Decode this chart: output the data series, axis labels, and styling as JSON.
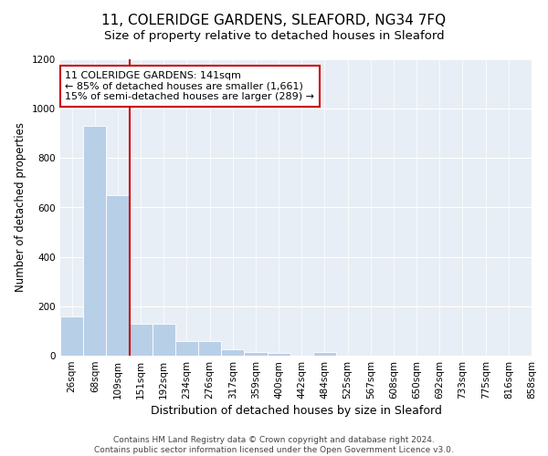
{
  "title": "11, COLERIDGE GARDENS, SLEAFORD, NG34 7FQ",
  "subtitle": "Size of property relative to detached houses in Sleaford",
  "xlabel": "Distribution of detached houses by size in Sleaford",
  "ylabel": "Number of detached properties",
  "bar_values": [
    160,
    930,
    650,
    130,
    130,
    60,
    60,
    25,
    15,
    10,
    0,
    15,
    0,
    0,
    0,
    0,
    0,
    0,
    0,
    0
  ],
  "bar_labels": [
    "26sqm",
    "68sqm",
    "109sqm",
    "151sqm",
    "192sqm",
    "234sqm",
    "276sqm",
    "317sqm",
    "359sqm",
    "400sqm",
    "442sqm",
    "484sqm",
    "525sqm",
    "567sqm",
    "608sqm",
    "650sqm",
    "692sqm",
    "733sqm",
    "775sqm",
    "816sqm",
    "858sqm"
  ],
  "bar_color": "#b8cfe8",
  "vline_x": 2.5,
  "vline_color": "#cc0000",
  "annotation_text": "11 COLERIDGE GARDENS: 141sqm\n← 85% of detached houses are smaller (1,661)\n15% of semi-detached houses are larger (289) →",
  "annotation_box_color": "#ffffff",
  "annotation_box_edge_color": "#cc0000",
  "ylim": [
    0,
    1200
  ],
  "yticks": [
    0,
    200,
    400,
    600,
    800,
    1000,
    1200
  ],
  "bg_color": "#e8eef5",
  "footer_text": "Contains HM Land Registry data © Crown copyright and database right 2024.\nContains public sector information licensed under the Open Government Licence v3.0.",
  "title_fontsize": 11,
  "subtitle_fontsize": 9.5,
  "xlabel_fontsize": 9,
  "ylabel_fontsize": 8.5,
  "tick_fontsize": 7.5,
  "annotation_fontsize": 8,
  "footer_fontsize": 6.5
}
